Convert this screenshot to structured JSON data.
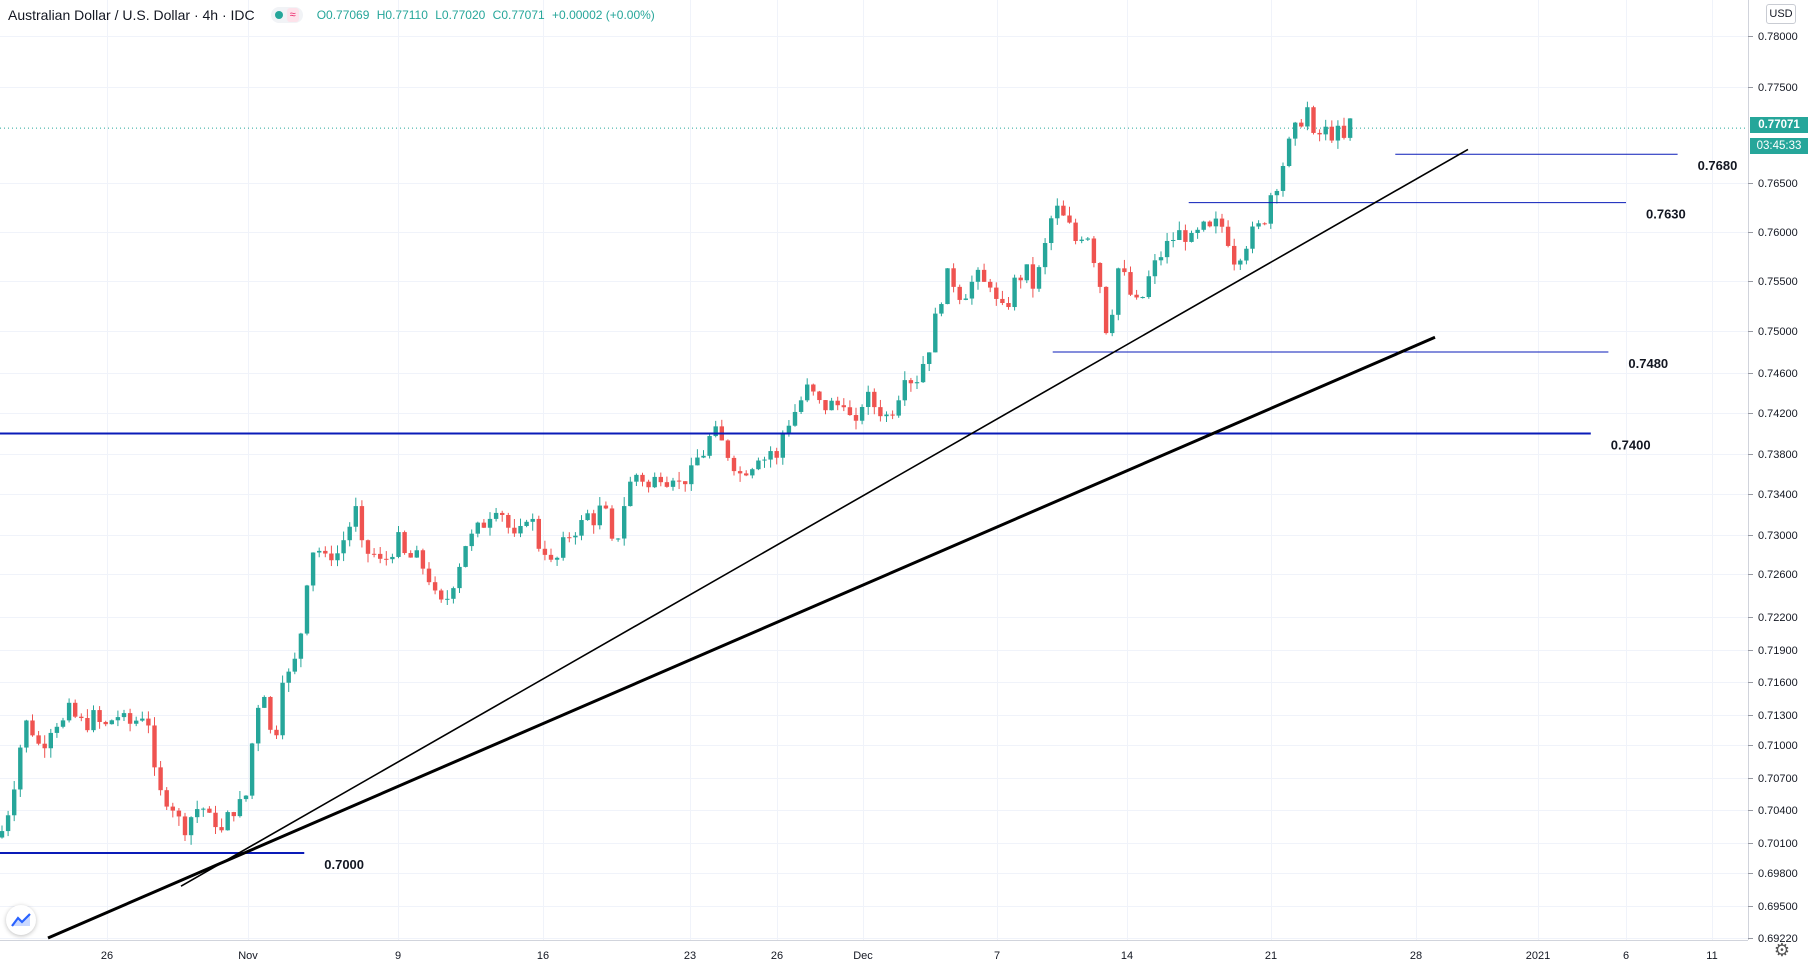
{
  "header": {
    "title": "Australian Dollar / U.S. Dollar · 4h · IDC",
    "open": "O0.77069",
    "high": "H0.77110",
    "low": "L0.77020",
    "close": "C0.77071",
    "change": "+0.00002 (+0.00%)"
  },
  "axis": {
    "currency_button": "USD",
    "settings_icon": "gear-icon"
  },
  "current_price": {
    "price_label": "0.77071",
    "countdown_label": "03:45:33",
    "color": "#26a69a"
  },
  "colors": {
    "up": "#26a69a",
    "down": "#ef5350",
    "level_line": "#0a1bb8",
    "trendline": "#000000"
  },
  "chart_data": {
    "type": "candlestick",
    "instrument": "Australian Dollar / U.S. Dollar",
    "timeframe": "4h",
    "ylim": [
      0.6922,
      0.7815
    ],
    "y_ticks": [
      "0.78000",
      "0.77500",
      "0.76500",
      "0.76000",
      "0.75500",
      "0.75000",
      "0.74600",
      "0.74200",
      "0.73800",
      "0.73400",
      "0.73000",
      "0.72600",
      "0.72200",
      "0.71900",
      "0.71600",
      "0.71300",
      "0.71000",
      "0.70700",
      "0.70400",
      "0.70100",
      "0.69800",
      "0.69500",
      "0.69220"
    ],
    "x_ticks": [
      "26",
      "Nov",
      "9",
      "16",
      "23",
      "26",
      "Dec",
      "7",
      "14",
      "21",
      "28",
      "2021",
      "6",
      "11"
    ],
    "close_path": [
      [
        0,
        0.7015
      ],
      [
        10,
        0.7045
      ],
      [
        19,
        0.709
      ],
      [
        24,
        0.7125
      ],
      [
        32,
        0.7115
      ],
      [
        41,
        0.7095
      ],
      [
        47,
        0.711
      ],
      [
        54,
        0.7125
      ],
      [
        62,
        0.712
      ],
      [
        70,
        0.7135
      ],
      [
        77,
        0.7125
      ],
      [
        86,
        0.712
      ],
      [
        95,
        0.713
      ],
      [
        103,
        0.7115
      ],
      [
        111,
        0.7125
      ],
      [
        119,
        0.713
      ],
      [
        128,
        0.712
      ],
      [
        136,
        0.7125
      ],
      [
        142,
        0.713
      ],
      [
        147,
        0.714
      ],
      [
        152,
        0.708
      ],
      [
        160,
        0.7055
      ],
      [
        168,
        0.705
      ],
      [
        176,
        0.704
      ],
      [
        182,
        0.702
      ],
      [
        188,
        0.703
      ],
      [
        195,
        0.704
      ],
      [
        202,
        0.7045
      ],
      [
        208,
        0.703
      ],
      [
        214,
        0.7035
      ],
      [
        220,
        0.7015
      ],
      [
        226,
        0.703
      ],
      [
        232,
        0.704
      ],
      [
        240,
        0.7045
      ],
      [
        247,
        0.7055
      ],
      [
        253,
        0.711
      ],
      [
        258,
        0.714
      ],
      [
        263,
        0.716
      ],
      [
        268,
        0.713
      ],
      [
        273,
        0.7095
      ],
      [
        278,
        0.7125
      ],
      [
        284,
        0.718
      ],
      [
        289,
        0.7165
      ],
      [
        294,
        0.7175
      ],
      [
        300,
        0.72
      ],
      [
        305,
        0.724
      ],
      [
        310,
        0.728
      ],
      [
        316,
        0.729
      ],
      [
        322,
        0.728
      ],
      [
        328,
        0.727
      ],
      [
        333,
        0.7285
      ],
      [
        339,
        0.728
      ],
      [
        345,
        0.73
      ],
      [
        350,
        0.731
      ],
      [
        355,
        0.733
      ],
      [
        360,
        0.729
      ],
      [
        366,
        0.728
      ],
      [
        372,
        0.7285
      ],
      [
        378,
        0.727
      ],
      [
        385,
        0.7275
      ],
      [
        391,
        0.728
      ],
      [
        397,
        0.73
      ],
      [
        403,
        0.728
      ],
      [
        409,
        0.7275
      ],
      [
        415,
        0.728
      ],
      [
        421,
        0.727
      ],
      [
        428,
        0.726
      ],
      [
        434,
        0.724
      ],
      [
        440,
        0.723
      ],
      [
        446,
        0.7235
      ],
      [
        452,
        0.725
      ],
      [
        458,
        0.7265
      ],
      [
        464,
        0.729
      ],
      [
        470,
        0.7295
      ],
      [
        477,
        0.7305
      ],
      [
        483,
        0.731
      ],
      [
        489,
        0.732
      ],
      [
        495,
        0.733
      ],
      [
        501,
        0.7325
      ],
      [
        507,
        0.731
      ],
      [
        514,
        0.7295
      ],
      [
        520,
        0.73
      ],
      [
        526,
        0.732
      ],
      [
        532,
        0.7315
      ],
      [
        538,
        0.729
      ],
      [
        545,
        0.7285
      ],
      [
        551,
        0.727
      ],
      [
        557,
        0.7275
      ],
      [
        563,
        0.729
      ],
      [
        569,
        0.73
      ],
      [
        575,
        0.7305
      ],
      [
        581,
        0.731
      ],
      [
        588,
        0.732
      ],
      [
        594,
        0.7315
      ],
      [
        600,
        0.7325
      ],
      [
        606,
        0.732
      ],
      [
        612,
        0.729
      ],
      [
        618,
        0.73
      ],
      [
        624,
        0.733
      ],
      [
        630,
        0.735
      ],
      [
        636,
        0.736
      ],
      [
        643,
        0.7355
      ],
      [
        649,
        0.7345
      ],
      [
        655,
        0.7355
      ],
      [
        661,
        0.736
      ],
      [
        667,
        0.7355
      ],
      [
        673,
        0.736
      ],
      [
        679,
        0.735
      ],
      [
        685,
        0.7355
      ],
      [
        691,
        0.736
      ],
      [
        697,
        0.7375
      ],
      [
        703,
        0.738
      ],
      [
        709,
        0.7395
      ],
      [
        716,
        0.74
      ],
      [
        722,
        0.739
      ],
      [
        728,
        0.738
      ],
      [
        734,
        0.737
      ],
      [
        740,
        0.736
      ],
      [
        746,
        0.7365
      ],
      [
        752,
        0.737
      ],
      [
        758,
        0.738
      ],
      [
        764,
        0.7375
      ],
      [
        770,
        0.7385
      ],
      [
        776,
        0.737
      ],
      [
        782,
        0.74
      ],
      [
        788,
        0.741
      ],
      [
        794,
        0.742
      ],
      [
        800,
        0.743
      ],
      [
        806,
        0.7445
      ],
      [
        812,
        0.744
      ],
      [
        818,
        0.743
      ],
      [
        824,
        0.7425
      ],
      [
        830,
        0.743
      ],
      [
        836,
        0.7425
      ],
      [
        842,
        0.7435
      ],
      [
        848,
        0.743
      ],
      [
        853,
        0.739
      ],
      [
        859,
        0.742
      ],
      [
        865,
        0.744
      ],
      [
        871,
        0.743
      ],
      [
        877,
        0.7425
      ],
      [
        883,
        0.742
      ],
      [
        889,
        0.7415
      ],
      [
        895,
        0.743
      ],
      [
        901,
        0.7445
      ],
      [
        907,
        0.747
      ],
      [
        913,
        0.7445
      ],
      [
        919,
        0.746
      ],
      [
        925,
        0.7475
      ],
      [
        931,
        0.749
      ],
      [
        937,
        0.752
      ],
      [
        943,
        0.754
      ],
      [
        949,
        0.756
      ],
      [
        955,
        0.7545
      ],
      [
        961,
        0.7535
      ],
      [
        967,
        0.754
      ],
      [
        973,
        0.755
      ],
      [
        979,
        0.7555
      ],
      [
        985,
        0.7545
      ],
      [
        991,
        0.755
      ],
      [
        997,
        0.7525
      ],
      [
        1003,
        0.752
      ],
      [
        1009,
        0.753
      ],
      [
        1015,
        0.755
      ],
      [
        1021,
        0.7555
      ],
      [
        1027,
        0.756
      ],
      [
        1033,
        0.7545
      ],
      [
        1039,
        0.756
      ],
      [
        1044,
        0.758
      ],
      [
        1050,
        0.761
      ],
      [
        1056,
        0.7625
      ],
      [
        1062,
        0.7615
      ],
      [
        1068,
        0.761
      ],
      [
        1074,
        0.759
      ],
      [
        1080,
        0.7595
      ],
      [
        1086,
        0.7605
      ],
      [
        1092,
        0.758
      ],
      [
        1098,
        0.756
      ],
      [
        1104,
        0.752
      ],
      [
        1109,
        0.748
      ],
      [
        1115,
        0.756
      ],
      [
        1121,
        0.7565
      ],
      [
        1127,
        0.7545
      ],
      [
        1133,
        0.753
      ],
      [
        1139,
        0.7525
      ],
      [
        1145,
        0.754
      ],
      [
        1151,
        0.756
      ],
      [
        1157,
        0.757
      ],
      [
        1163,
        0.758
      ],
      [
        1169,
        0.759
      ],
      [
        1175,
        0.7595
      ],
      [
        1181,
        0.76
      ],
      [
        1187,
        0.7595
      ],
      [
        1193,
        0.759
      ],
      [
        1199,
        0.76
      ],
      [
        1205,
        0.7605
      ],
      [
        1211,
        0.76
      ],
      [
        1217,
        0.761
      ],
      [
        1223,
        0.7605
      ],
      [
        1229,
        0.759
      ],
      [
        1235,
        0.757
      ],
      [
        1241,
        0.758
      ],
      [
        1247,
        0.759
      ],
      [
        1253,
        0.76
      ],
      [
        1259,
        0.7605
      ],
      [
        1265,
        0.7615
      ],
      [
        1271,
        0.764
      ],
      [
        1277,
        0.765
      ],
      [
        1283,
        0.767
      ],
      [
        1289,
        0.769
      ],
      [
        1295,
        0.7705
      ],
      [
        1301,
        0.7715
      ],
      [
        1307,
        0.773
      ],
      [
        1313,
        0.7695
      ],
      [
        1319,
        0.77
      ],
      [
        1325,
        0.7705
      ],
      [
        1331,
        0.77
      ],
      [
        1337,
        0.7705
      ],
      [
        1343,
        0.769
      ],
      [
        1349,
        0.7715
      ],
      [
        1354,
        0.7707
      ]
    ],
    "horizontal_levels": [
      {
        "value": 0.768,
        "label": "0.7680",
        "from_date": "Dec 27",
        "to_date": "Jan 9"
      },
      {
        "value": 0.763,
        "label": "0.7630",
        "from_date": "Dec 17",
        "to_date": "Jan 6"
      },
      {
        "value": 0.748,
        "label": "0.7480",
        "from_date": "Dec 10",
        "to_date": "Jan 5"
      },
      {
        "value": 0.74,
        "label": "0.7400",
        "from_date": "Oct 20",
        "to_date": "Jan 4"
      },
      {
        "value": 0.7,
        "label": "0.7000",
        "from_date": "Oct 20",
        "to_date": "Nov 4"
      }
    ],
    "trendlines": [
      {
        "name": "thin",
        "points": [
          [
            181,
            0.6968
          ],
          [
            1468,
            0.7685
          ]
        ]
      },
      {
        "name": "thick",
        "points": [
          [
            48,
            0.6922
          ],
          [
            1435,
            0.7494
          ]
        ]
      }
    ]
  }
}
